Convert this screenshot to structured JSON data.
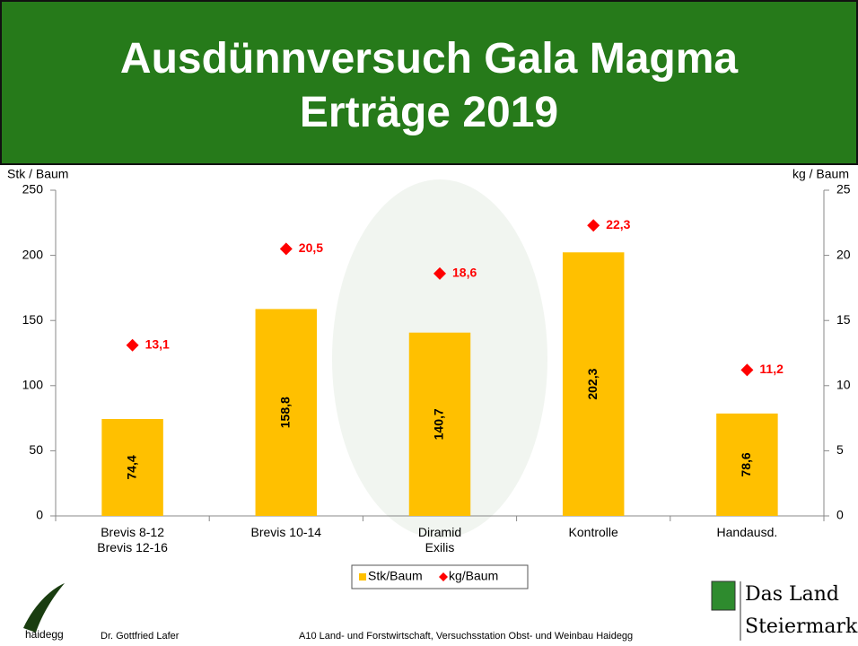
{
  "header": {
    "title": "Ausdünnversuch Gala Magma\nErträge 2019"
  },
  "chart_data": {
    "type": "bar",
    "y_label": "Stk / Baum",
    "y2_label": "kg / Baum",
    "categories": [
      "Brevis 8-12\nBrevis 12-16",
      "Brevis 10-14",
      "Diramid\nExilis",
      "Kontrolle",
      "Handausd."
    ],
    "series": [
      {
        "name": "Stk/Baum",
        "type": "bar",
        "color": "#ffc000",
        "values": [
          74.4,
          158.8,
          140.7,
          202.3,
          78.6
        ],
        "value_labels": [
          "74,4",
          "158,8",
          "140,7",
          "202,3",
          "78,6"
        ]
      },
      {
        "name": "kg/Baum",
        "type": "scatter",
        "axis": "y2",
        "color": "#ff0000",
        "values": [
          13.1,
          20.5,
          18.6,
          22.3,
          11.2
        ],
        "value_labels": [
          "13,1",
          "20,5",
          "18,6",
          "22,3",
          "11,2"
        ]
      }
    ],
    "ylim": [
      0,
      250
    ],
    "yticks": [
      0,
      50,
      100,
      150,
      200,
      250
    ],
    "y2lim": [
      0,
      25
    ],
    "y2ticks": [
      0,
      5,
      10,
      15,
      20,
      25
    ],
    "grid": false,
    "legend": "bottom"
  },
  "footer": {
    "logo_text": "haidegg",
    "author": "Dr. Gottfried Lafer",
    "institution": "A10 Land- und Forstwirtschaft, Versuchsstation Obst- und Weinbau Haidegg",
    "brand_line1": "Das Land",
    "brand_line2": "Steiermark"
  }
}
